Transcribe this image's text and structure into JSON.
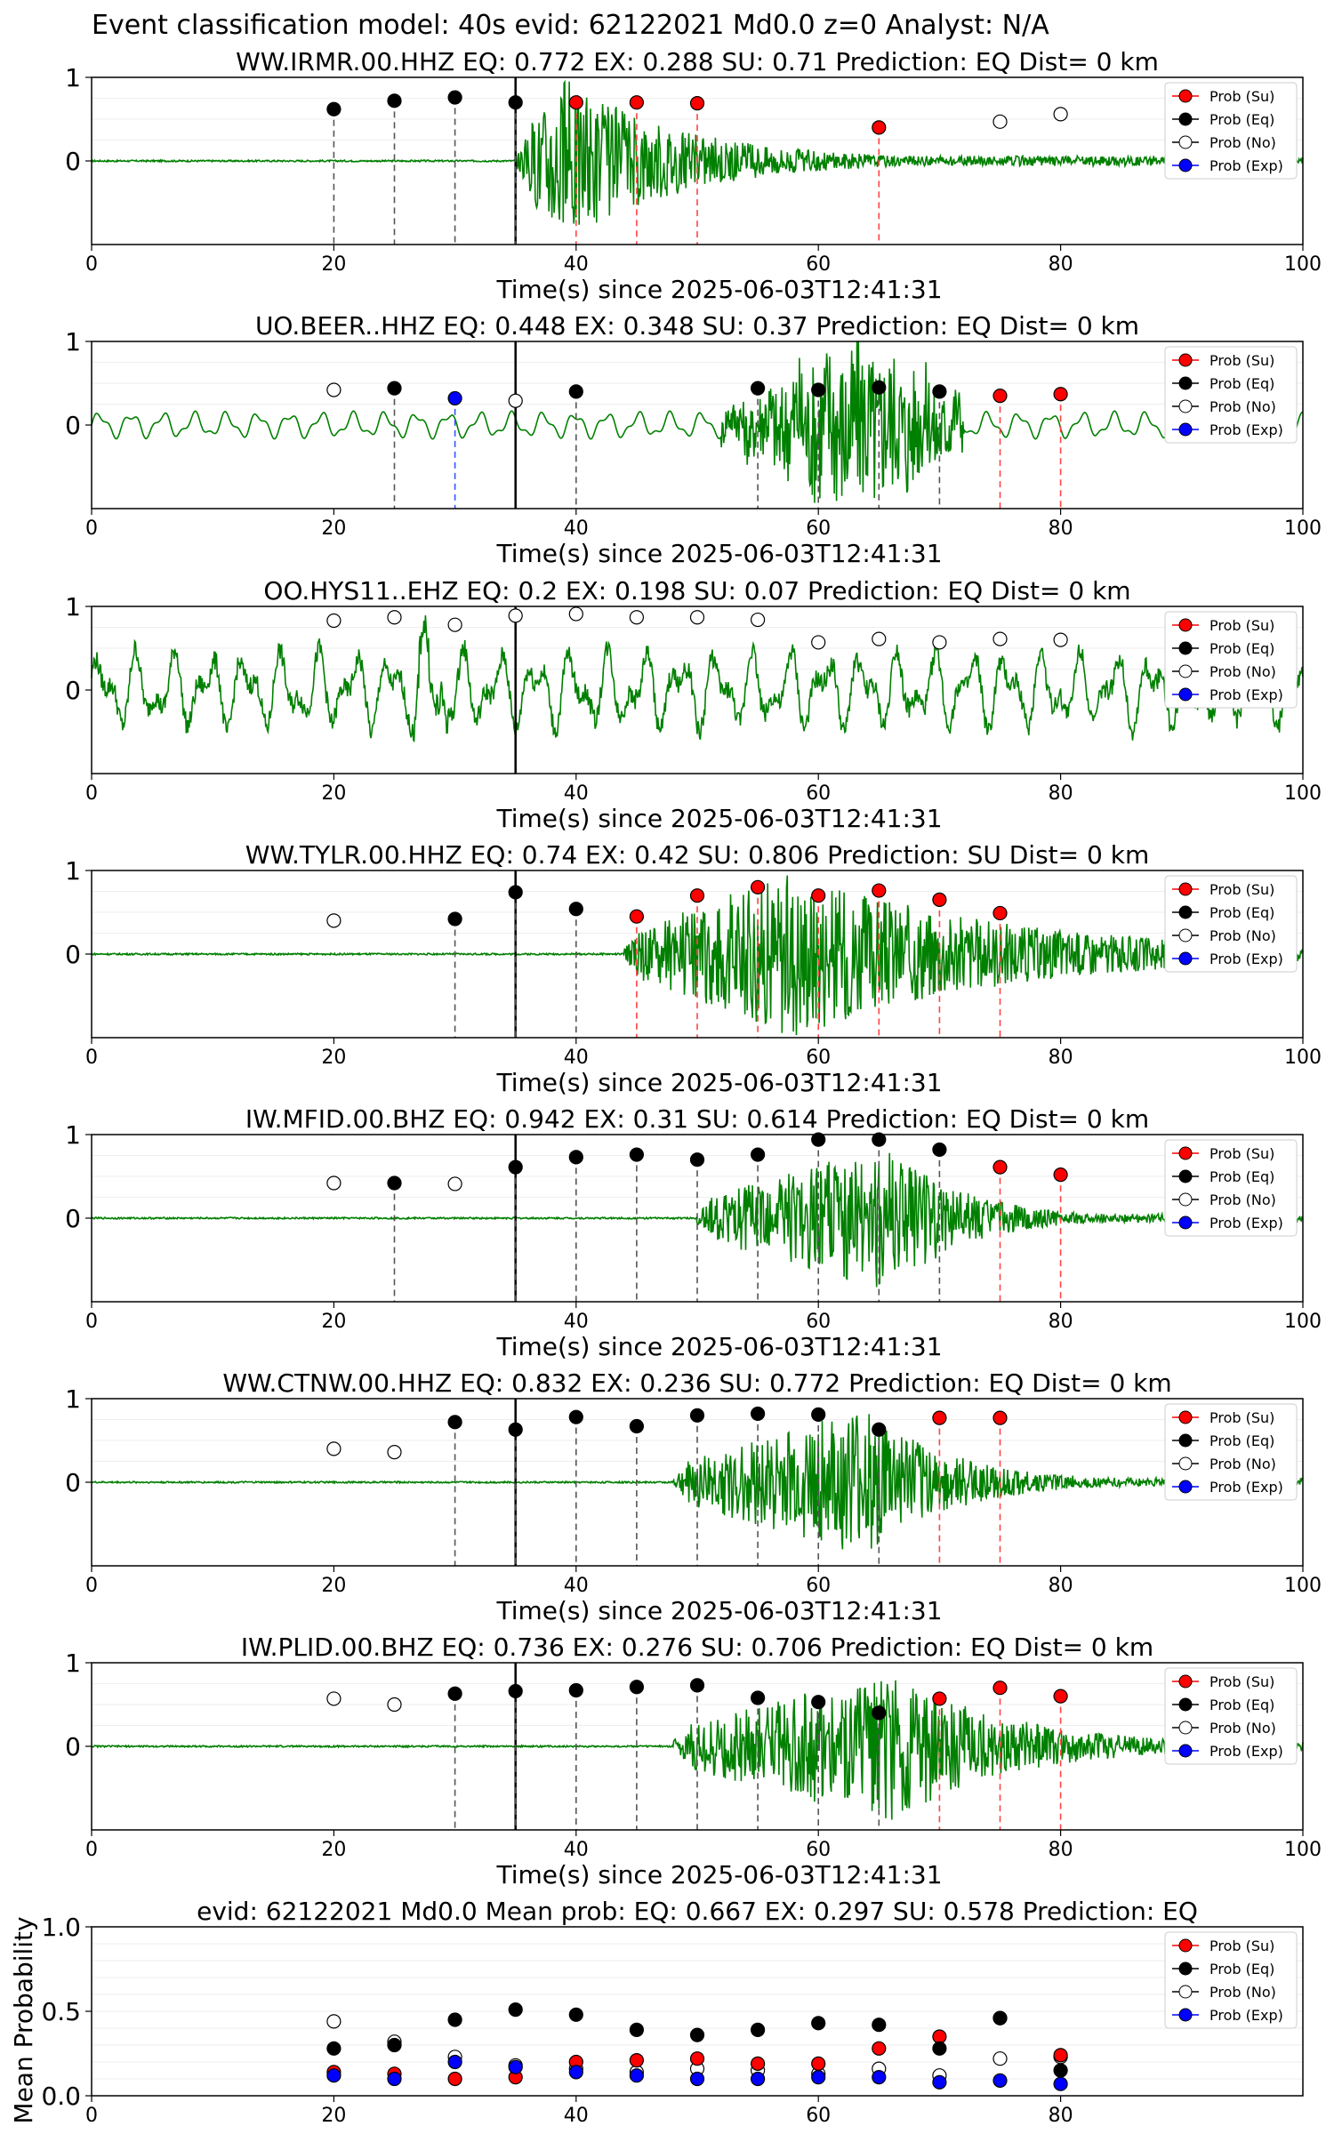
{
  "suptitle": "Event classification model: 40s evid: 62122021 Md0.0 z=0 Analyst: N/A",
  "legend": {
    "su": "Prob (Su)",
    "eq": "Prob (Eq)",
    "no": "Prob (No)",
    "exp": "Prob (Exp)"
  },
  "colors": {
    "su": "#ff0000",
    "eq": "#000000",
    "no": "#ffffff",
    "exp": "#0000ff",
    "waveform": "#008000",
    "marker_line_eq": "#555555",
    "marker_line_su": "#ff4444",
    "marker_line_exp": "#3355ff"
  },
  "chart_data": [
    {
      "type": "scatter",
      "title": "WW.IRMR.00.HHZ   EQ: 0.772  EX: 0.288  SU: 0.71   Prediction: EQ    Dist= 0 km",
      "xlabel": "Time(s) since 2025-06-03T12:41:31",
      "xlim": [
        0,
        100
      ],
      "ylim": [
        -1,
        1
      ],
      "xticks": [
        "0",
        "20",
        "40",
        "60",
        "80",
        "100"
      ],
      "yticks": [
        "0",
        "1"
      ],
      "arrival_line_x": 35,
      "waveform": {
        "onset": 35,
        "end": 100,
        "peak_time": 39,
        "peak_amp": 1.0,
        "decay": 10,
        "pre_amp": 0.01,
        "style": "burst"
      },
      "points": [
        {
          "x": 20,
          "p": 0.62,
          "c": "eq"
        },
        {
          "x": 25,
          "p": 0.72,
          "c": "eq"
        },
        {
          "x": 30,
          "p": 0.76,
          "c": "eq"
        },
        {
          "x": 35,
          "p": 0.7,
          "c": "eq"
        },
        {
          "x": 40,
          "p": 0.7,
          "c": "su"
        },
        {
          "x": 45,
          "p": 0.7,
          "c": "su"
        },
        {
          "x": 50,
          "p": 0.69,
          "c": "su"
        },
        {
          "x": 65,
          "p": 0.4,
          "c": "su"
        },
        {
          "x": 75,
          "p": 0.47,
          "c": "no"
        },
        {
          "x": 80,
          "p": 0.56,
          "c": "no"
        }
      ]
    },
    {
      "type": "scatter",
      "title": "UO.BEER..HHZ   EQ: 0.448  EX: 0.348  SU: 0.37   Prediction: EQ    Dist= 0 km",
      "xlabel": "Time(s) since 2025-06-03T12:41:31",
      "xlim": [
        0,
        100
      ],
      "ylim": [
        -1,
        1
      ],
      "xticks": [
        "0",
        "20",
        "40",
        "60",
        "80",
        "100"
      ],
      "yticks": [
        "0",
        "1"
      ],
      "arrival_line_x": 35,
      "waveform": {
        "onset": 52,
        "end": 72,
        "peak_time": 63,
        "peak_amp": 1.0,
        "decay": 12,
        "pre_amp": 0.12,
        "style": "noisy"
      },
      "points": [
        {
          "x": 20,
          "p": 0.42,
          "c": "no"
        },
        {
          "x": 25,
          "p": 0.44,
          "c": "eq"
        },
        {
          "x": 30,
          "p": 0.32,
          "c": "exp"
        },
        {
          "x": 35,
          "p": 0.29,
          "c": "no"
        },
        {
          "x": 40,
          "p": 0.4,
          "c": "eq"
        },
        {
          "x": 55,
          "p": 0.44,
          "c": "eq"
        },
        {
          "x": 60,
          "p": 0.42,
          "c": "eq"
        },
        {
          "x": 65,
          "p": 0.45,
          "c": "eq"
        },
        {
          "x": 70,
          "p": 0.4,
          "c": "eq"
        },
        {
          "x": 75,
          "p": 0.35,
          "c": "su"
        },
        {
          "x": 80,
          "p": 0.37,
          "c": "su"
        }
      ]
    },
    {
      "type": "scatter",
      "title": "OO.HYS11..EHZ   EQ: 0.2  EX: 0.198  SU: 0.07   Prediction: EQ    Dist= 0 km",
      "xlabel": "Time(s) since 2025-06-03T12:41:31",
      "xlim": [
        0,
        100
      ],
      "ylim": [
        -1,
        1
      ],
      "xticks": [
        "0",
        "20",
        "40",
        "60",
        "80",
        "100"
      ],
      "yticks": [
        "0",
        "1"
      ],
      "arrival_line_x": 35,
      "waveform": {
        "onset": 0,
        "end": 100,
        "peak_time": 28,
        "peak_amp": 0.9,
        "decay": 100,
        "pre_amp": 0.6,
        "style": "oscillating"
      },
      "points": [
        {
          "x": 20,
          "p": 0.83,
          "c": "no"
        },
        {
          "x": 25,
          "p": 0.87,
          "c": "no"
        },
        {
          "x": 30,
          "p": 0.78,
          "c": "no"
        },
        {
          "x": 35,
          "p": 0.89,
          "c": "no"
        },
        {
          "x": 40,
          "p": 0.91,
          "c": "no"
        },
        {
          "x": 45,
          "p": 0.87,
          "c": "no"
        },
        {
          "x": 50,
          "p": 0.87,
          "c": "no"
        },
        {
          "x": 55,
          "p": 0.84,
          "c": "no"
        },
        {
          "x": 60,
          "p": 0.57,
          "c": "no"
        },
        {
          "x": 65,
          "p": 0.61,
          "c": "no"
        },
        {
          "x": 70,
          "p": 0.57,
          "c": "no"
        },
        {
          "x": 75,
          "p": 0.61,
          "c": "no"
        },
        {
          "x": 80,
          "p": 0.6,
          "c": "no"
        }
      ]
    },
    {
      "type": "scatter",
      "title": "WW.TYLR.00.HHZ   EQ: 0.74  EX: 0.42  SU: 0.806   Prediction: SU    Dist= 0 km",
      "xlabel": "Time(s) since 2025-06-03T12:41:31",
      "xlim": [
        0,
        100
      ],
      "ylim": [
        -1,
        1
      ],
      "xticks": [
        "0",
        "20",
        "40",
        "60",
        "80",
        "100"
      ],
      "yticks": [
        "0",
        "1"
      ],
      "arrival_line_x": 35,
      "waveform": {
        "onset": 44,
        "end": 100,
        "peak_time": 58,
        "peak_amp": 1.0,
        "decay": 18,
        "pre_amp": 0.01,
        "style": "burst"
      },
      "points": [
        {
          "x": 20,
          "p": 0.4,
          "c": "no"
        },
        {
          "x": 30,
          "p": 0.42,
          "c": "eq"
        },
        {
          "x": 35,
          "p": 0.74,
          "c": "eq"
        },
        {
          "x": 40,
          "p": 0.54,
          "c": "eq"
        },
        {
          "x": 45,
          "p": 0.45,
          "c": "su"
        },
        {
          "x": 50,
          "p": 0.7,
          "c": "su"
        },
        {
          "x": 55,
          "p": 0.8,
          "c": "su"
        },
        {
          "x": 60,
          "p": 0.7,
          "c": "su"
        },
        {
          "x": 65,
          "p": 0.76,
          "c": "su"
        },
        {
          "x": 70,
          "p": 0.65,
          "c": "su"
        },
        {
          "x": 75,
          "p": 0.49,
          "c": "su"
        }
      ]
    },
    {
      "type": "scatter",
      "title": "IW.MFID.00.BHZ   EQ: 0.942  EX: 0.31  SU: 0.614   Prediction: EQ    Dist= 0 km",
      "xlabel": "Time(s) since 2025-06-03T12:41:31",
      "xlim": [
        0,
        100
      ],
      "ylim": [
        -1,
        1
      ],
      "xticks": [
        "0",
        "20",
        "40",
        "60",
        "80",
        "100"
      ],
      "yticks": [
        "0",
        "1"
      ],
      "arrival_line_x": 35,
      "waveform": {
        "onset": 50,
        "end": 100,
        "peak_time": 66,
        "peak_amp": 0.9,
        "decay": 6,
        "pre_amp": 0.01,
        "style": "burst"
      },
      "points": [
        {
          "x": 20,
          "p": 0.42,
          "c": "no"
        },
        {
          "x": 25,
          "p": 0.42,
          "c": "eq"
        },
        {
          "x": 30,
          "p": 0.41,
          "c": "no"
        },
        {
          "x": 35,
          "p": 0.61,
          "c": "eq"
        },
        {
          "x": 40,
          "p": 0.73,
          "c": "eq"
        },
        {
          "x": 45,
          "p": 0.76,
          "c": "eq"
        },
        {
          "x": 50,
          "p": 0.7,
          "c": "eq"
        },
        {
          "x": 55,
          "p": 0.76,
          "c": "eq"
        },
        {
          "x": 60,
          "p": 0.94,
          "c": "eq"
        },
        {
          "x": 65,
          "p": 0.94,
          "c": "eq"
        },
        {
          "x": 70,
          "p": 0.82,
          "c": "eq"
        },
        {
          "x": 75,
          "p": 0.61,
          "c": "su"
        },
        {
          "x": 80,
          "p": 0.52,
          "c": "su"
        }
      ]
    },
    {
      "type": "scatter",
      "title": "WW.CTNW.00.HHZ   EQ: 0.832  EX: 0.236  SU: 0.772   Prediction: EQ    Dist= 0 km",
      "xlabel": "Time(s) since 2025-06-03T12:41:31",
      "xlim": [
        0,
        100
      ],
      "ylim": [
        -1,
        1
      ],
      "xticks": [
        "0",
        "20",
        "40",
        "60",
        "80",
        "100"
      ],
      "yticks": [
        "0",
        "1"
      ],
      "arrival_line_x": 35,
      "waveform": {
        "onset": 48,
        "end": 100,
        "peak_time": 64,
        "peak_amp": 0.9,
        "decay": 7,
        "pre_amp": 0.01,
        "style": "burst"
      },
      "points": [
        {
          "x": 20,
          "p": 0.4,
          "c": "no"
        },
        {
          "x": 25,
          "p": 0.36,
          "c": "no"
        },
        {
          "x": 30,
          "p": 0.72,
          "c": "eq"
        },
        {
          "x": 35,
          "p": 0.63,
          "c": "eq"
        },
        {
          "x": 40,
          "p": 0.78,
          "c": "eq"
        },
        {
          "x": 45,
          "p": 0.67,
          "c": "eq"
        },
        {
          "x": 50,
          "p": 0.8,
          "c": "eq"
        },
        {
          "x": 55,
          "p": 0.82,
          "c": "eq"
        },
        {
          "x": 60,
          "p": 0.81,
          "c": "eq"
        },
        {
          "x": 65,
          "p": 0.63,
          "c": "eq"
        },
        {
          "x": 70,
          "p": 0.77,
          "c": "su"
        },
        {
          "x": 75,
          "p": 0.77,
          "c": "su"
        }
      ]
    },
    {
      "type": "scatter",
      "title": "IW.PLID.00.BHZ   EQ: 0.736  EX: 0.276  SU: 0.706   Prediction: EQ    Dist= 0 km",
      "xlabel": "Time(s) since 2025-06-03T12:41:31",
      "xlim": [
        0,
        100
      ],
      "ylim": [
        -1,
        1
      ],
      "xticks": [
        "0",
        "20",
        "40",
        "60",
        "80",
        "100"
      ],
      "yticks": [
        "0",
        "1"
      ],
      "arrival_line_x": 35,
      "waveform": {
        "onset": 48,
        "end": 100,
        "peak_time": 66,
        "peak_amp": 0.9,
        "decay": 10,
        "pre_amp": 0.01,
        "style": "burst"
      },
      "points": [
        {
          "x": 20,
          "p": 0.57,
          "c": "no"
        },
        {
          "x": 25,
          "p": 0.5,
          "c": "no"
        },
        {
          "x": 30,
          "p": 0.63,
          "c": "eq"
        },
        {
          "x": 35,
          "p": 0.66,
          "c": "eq"
        },
        {
          "x": 40,
          "p": 0.67,
          "c": "eq"
        },
        {
          "x": 45,
          "p": 0.71,
          "c": "eq"
        },
        {
          "x": 50,
          "p": 0.73,
          "c": "eq"
        },
        {
          "x": 55,
          "p": 0.58,
          "c": "eq"
        },
        {
          "x": 60,
          "p": 0.53,
          "c": "eq"
        },
        {
          "x": 65,
          "p": 0.4,
          "c": "eq"
        },
        {
          "x": 70,
          "p": 0.57,
          "c": "su"
        },
        {
          "x": 75,
          "p": 0.7,
          "c": "su"
        },
        {
          "x": 80,
          "p": 0.6,
          "c": "su"
        }
      ]
    },
    {
      "type": "scatter",
      "title": "evid: 62122021  Md0.0   Mean prob:   EQ: 0.667  EX: 0.297  SU: 0.578   Prediction: EQ",
      "xlabel": "",
      "ylabel": "Mean Probability",
      "xlim": [
        0,
        100
      ],
      "ylim": [
        0,
        1
      ],
      "xticks": [
        "0",
        "20",
        "40",
        "60",
        "80"
      ],
      "yticks": [
        "0.0",
        "0.5",
        "1.0"
      ],
      "x": [
        20,
        25,
        30,
        35,
        40,
        45,
        50,
        55,
        60,
        65,
        70,
        75,
        80
      ],
      "series": [
        {
          "key": "no",
          "name": "Prob (No)",
          "values": [
            0.44,
            0.32,
            0.23,
            0.18,
            0.16,
            0.14,
            0.16,
            0.15,
            0.13,
            0.16,
            0.12,
            0.22,
            0.23
          ]
        },
        {
          "key": "su",
          "name": "Prob (Su)",
          "values": [
            0.14,
            0.13,
            0.1,
            0.11,
            0.2,
            0.21,
            0.22,
            0.19,
            0.19,
            0.28,
            0.35,
            0.46,
            0.24
          ]
        },
        {
          "key": "eq",
          "name": "Prob (Eq)",
          "values": [
            0.28,
            0.3,
            0.45,
            0.51,
            0.48,
            0.39,
            0.36,
            0.39,
            0.43,
            0.42,
            0.28,
            0.46,
            0.15
          ]
        },
        {
          "key": "exp",
          "name": "Prob (Exp)",
          "values": [
            0.12,
            0.1,
            0.2,
            0.17,
            0.14,
            0.12,
            0.1,
            0.1,
            0.11,
            0.11,
            0.08,
            0.09,
            0.07
          ]
        }
      ]
    }
  ]
}
